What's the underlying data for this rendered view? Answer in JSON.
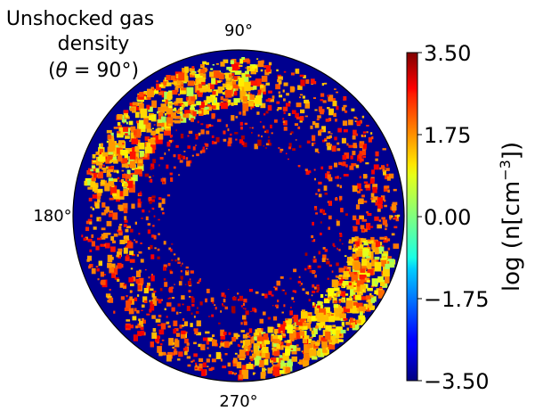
{
  "chart_data": {
    "type": "heatmap",
    "projection": "polar",
    "title_lines": [
      "Unshocked gas",
      "density"
    ],
    "title_theta_prefix": "(",
    "title_theta_symbol": "θ",
    "title_theta_value": " = 90",
    "title_theta_suffix": "°)",
    "angle_tick_labels": [
      "90°",
      "180°",
      "270°"
    ],
    "colorbar": {
      "label_prefix": "log (n[cm",
      "label_exponent": "−3",
      "label_suffix": "])",
      "vmin": -3.5,
      "vmax": 3.5,
      "tick_labels": [
        "3.50",
        "1.75",
        "0.00",
        "−1.75",
        "−3.50"
      ],
      "tick_values": [
        3.5,
        1.75,
        0.0,
        -1.75,
        -3.5
      ],
      "colormap": "jet"
    },
    "background_value": -3.5,
    "structure_description_values": {
      "outer_ring_radius_fraction": 0.82,
      "inner_ring_radius_fraction": 0.55
    },
    "colors": {
      "background": "#00008f",
      "edge": "#000000"
    }
  }
}
